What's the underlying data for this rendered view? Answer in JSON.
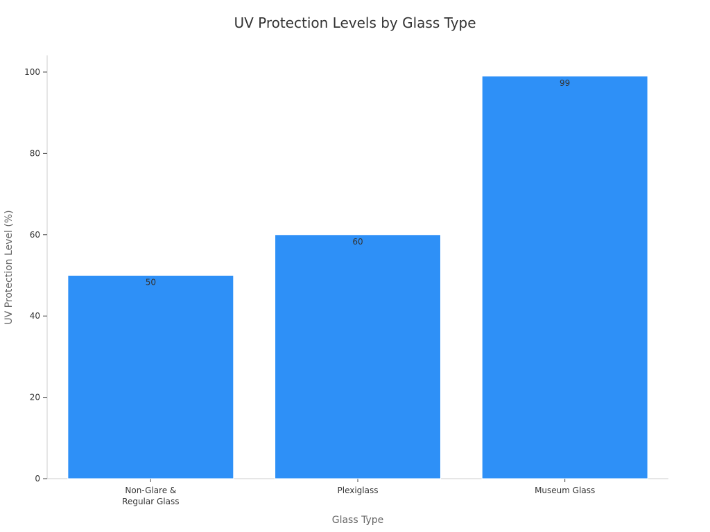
{
  "chart_data": {
    "type": "bar",
    "title": "UV Protection Levels by Glass Type",
    "xlabel": "Glass Type",
    "ylabel": "UV Protection Level (%)",
    "categories": [
      "Non-Glare & Regular Glass",
      "Plexiglass",
      "Museum Glass"
    ],
    "category_label_lines": [
      [
        "Non-Glare &",
        "Regular Glass"
      ],
      [
        "Plexiglass"
      ],
      [
        "Museum Glass"
      ]
    ],
    "values": [
      50,
      60,
      99
    ],
    "data_labels": [
      "50",
      "60",
      "99"
    ],
    "ylim": [
      0,
      100
    ],
    "yticks": [
      0,
      20,
      40,
      60,
      80,
      100
    ],
    "grid": false,
    "bar_color": "#2e90f7"
  }
}
